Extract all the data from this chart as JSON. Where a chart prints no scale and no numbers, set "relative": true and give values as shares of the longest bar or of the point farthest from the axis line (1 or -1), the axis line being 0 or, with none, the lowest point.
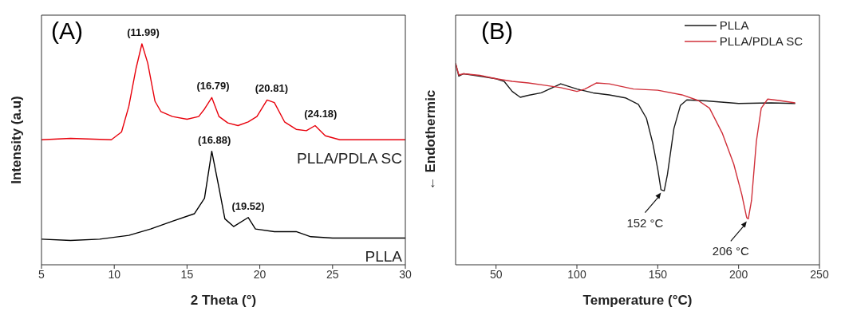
{
  "chart_data": [
    {
      "type": "line",
      "title": "(A)",
      "xlabel": "2 Theta (°)",
      "ylabel": "Intensity (a.u)",
      "relative": true,
      "xlim": [
        5,
        30
      ],
      "xticks": [
        5,
        10,
        15,
        20,
        25,
        30
      ],
      "legend": false,
      "marker": "none",
      "line_style": "solid",
      "series": [
        {
          "name": "PLLA/PDLA SC",
          "color": "#e8000b",
          "x": [
            5,
            7,
            9.8,
            10.5,
            11,
            11.5,
            11.9,
            12.3,
            12.8,
            13.2,
            14,
            15,
            15.8,
            16.2,
            16.7,
            17.2,
            17.8,
            18.5,
            19.2,
            19.8,
            20.5,
            21,
            21.7,
            22.5,
            23.2,
            23.8,
            24.5,
            25.5,
            30
          ],
          "values": [
            0.566,
            0.572,
            0.566,
            0.601,
            0.717,
            0.89,
            1.0,
            0.913,
            0.74,
            0.694,
            0.671,
            0.659,
            0.671,
            0.705,
            0.757,
            0.671,
            0.642,
            0.63,
            0.647,
            0.671,
            0.746,
            0.734,
            0.647,
            0.613,
            0.607,
            0.63,
            0.584,
            0.566,
            0.566
          ]
        },
        {
          "name": "PLLA",
          "color": "#000000",
          "x": [
            5,
            7,
            9,
            11,
            12.5,
            14,
            15.5,
            16.2,
            16.7,
            17.2,
            17.6,
            18.2,
            19.2,
            19.7,
            21,
            22.5,
            23.5,
            25,
            30
          ],
          "values": [
            0.116,
            0.11,
            0.116,
            0.133,
            0.162,
            0.197,
            0.231,
            0.301,
            0.514,
            0.347,
            0.208,
            0.173,
            0.214,
            0.162,
            0.15,
            0.15,
            0.127,
            0.121,
            0.121
          ]
        }
      ],
      "annotations": [
        {
          "text": "(11.99)",
          "x": 11.99,
          "y": 1.0
        },
        {
          "text": "(16.79)",
          "x": 16.79,
          "y": 0.757
        },
        {
          "text": "(20.81)",
          "x": 20.81,
          "y": 0.746
        },
        {
          "text": "(24.18)",
          "x": 24.18,
          "y": 0.63
        },
        {
          "text": "(16.88)",
          "x": 16.88,
          "y": 0.514
        },
        {
          "text": "(19.52)",
          "x": 19.2,
          "y": 0.214
        }
      ]
    },
    {
      "type": "line",
      "title": "(B)",
      "xlabel": "Temperature (°C)",
      "ylabel": "← Endothermic",
      "relative": true,
      "xlim": [
        25,
        250
      ],
      "xticks": [
        50,
        100,
        150,
        200,
        250
      ],
      "legend": "top right",
      "marker": "none",
      "line_style": "solid",
      "series": [
        {
          "name": "PLLA",
          "color": "#1a1a1a",
          "x": [
            25,
            27,
            30,
            40,
            50,
            55,
            60,
            65,
            70,
            78,
            90,
            100,
            110,
            120,
            130,
            138,
            143,
            147,
            150,
            152,
            154,
            156,
            160,
            164,
            168,
            180,
            200,
            220,
            235
          ],
          "values": [
            1.0,
            0.937,
            0.949,
            0.937,
            0.924,
            0.911,
            0.861,
            0.832,
            0.842,
            0.854,
            0.899,
            0.873,
            0.854,
            0.844,
            0.829,
            0.797,
            0.728,
            0.601,
            0.475,
            0.373,
            0.367,
            0.449,
            0.677,
            0.791,
            0.819,
            0.814,
            0.801,
            0.804,
            0.801
          ]
        },
        {
          "name": "PLLA/PDLA SC",
          "color": "#d0303a",
          "x": [
            25,
            27,
            30,
            40,
            50,
            60,
            70,
            80,
            90,
            100,
            105,
            112,
            120,
            135,
            150,
            165,
            175,
            182,
            190,
            197,
            202,
            205,
            206,
            208,
            211,
            214,
            218,
            225,
            235
          ],
          "values": [
            1.0,
            0.943,
            0.949,
            0.941,
            0.924,
            0.911,
            0.903,
            0.892,
            0.88,
            0.861,
            0.873,
            0.903,
            0.899,
            0.873,
            0.867,
            0.844,
            0.816,
            0.778,
            0.652,
            0.5,
            0.348,
            0.234,
            0.228,
            0.32,
            0.614,
            0.778,
            0.823,
            0.816,
            0.804
          ]
        }
      ],
      "annotations": [
        {
          "text": "152 °C",
          "x": 153,
          "y": 0.37
        },
        {
          "text": "206 °C",
          "x": 206,
          "y": 0.228
        }
      ]
    }
  ]
}
